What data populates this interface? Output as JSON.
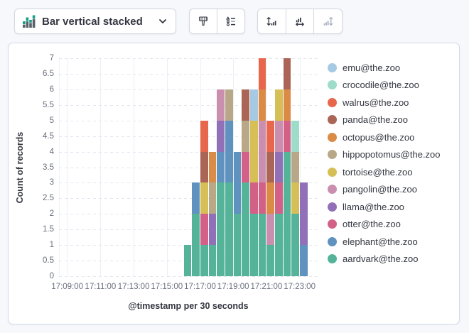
{
  "page": {
    "background": "#f7f8fc"
  },
  "toolbar": {
    "chart_switcher": {
      "label": "Bar vertical stacked",
      "icon": "bar-vertical-stacked-icon",
      "chevron_icon": "chevron-down-icon"
    },
    "style_buttons": [
      {
        "name": "brush-button",
        "icon": "brush-icon",
        "disabled": false
      },
      {
        "name": "legend-options-button",
        "icon": "legend-options-icon",
        "disabled": false
      }
    ],
    "axis_buttons": [
      {
        "name": "swap-axes-vertical-button",
        "icon": "swap-axes-vertical-icon",
        "disabled": false
      },
      {
        "name": "swap-axes-horizontal-button",
        "icon": "swap-axes-horizontal-icon",
        "disabled": false
      },
      {
        "name": "axis-settings-button",
        "icon": "axis-settings-disabled-icon",
        "disabled": true
      }
    ]
  },
  "chart_data": {
    "type": "bar",
    "stacked": true,
    "stack_order": "reverse-legend (aardvark@the.zoo at bottom, emu@the.zoo on top)",
    "xlabel": "@timestamp per 30 seconds",
    "ylabel": "Count of records",
    "ylim": [
      0,
      7
    ],
    "y_tick_step": 0.5,
    "x_axis_start": "17:08:30",
    "x_tick_labels": [
      "17:09:00",
      "17:11:00",
      "17:13:00",
      "17:15:00",
      "17:17:00",
      "17:19:00",
      "17:21:00",
      "17:23:00"
    ],
    "legend_position": "right",
    "grid": true,
    "categories": [
      "17:16:00",
      "17:16:30",
      "17:17:00",
      "17:17:30",
      "17:18:00",
      "17:18:30",
      "17:19:00",
      "17:19:30",
      "17:20:00",
      "17:20:30",
      "17:21:00",
      "17:21:30",
      "17:22:00",
      "17:22:30",
      "17:23:00"
    ],
    "series": [
      {
        "name": "emu@the.zoo",
        "color": "#A6CAE4",
        "values": [
          0,
          0,
          0,
          0,
          0,
          0,
          0,
          0,
          1,
          0,
          0,
          0,
          0,
          0,
          0
        ]
      },
      {
        "name": "crocodile@the.zoo",
        "color": "#9CDCC8",
        "values": [
          0,
          0,
          0,
          0,
          0,
          0,
          0,
          0,
          0,
          0,
          0,
          0,
          0,
          1,
          0
        ]
      },
      {
        "name": "walrus@the.zoo",
        "color": "#E7664C",
        "values": [
          0,
          0,
          1,
          0,
          0,
          0,
          0,
          0,
          0,
          1,
          1,
          0,
          0,
          0,
          0
        ]
      },
      {
        "name": "panda@the.zoo",
        "color": "#AA6556",
        "values": [
          0,
          0,
          1,
          0,
          0,
          0,
          0,
          1,
          0,
          0,
          1,
          0,
          1,
          0,
          0
        ]
      },
      {
        "name": "octopus@the.zoo",
        "color": "#DA8B45",
        "values": [
          0,
          0,
          0,
          1,
          0,
          0,
          0,
          0,
          0,
          1,
          1,
          0,
          1,
          0,
          0
        ]
      },
      {
        "name": "hippopotomus@the.zoo",
        "color": "#B9A888",
        "values": [
          0,
          0,
          0,
          1,
          0,
          1,
          0,
          1,
          0,
          0,
          0,
          0,
          0,
          1,
          0
        ]
      },
      {
        "name": "tortoise@the.zoo",
        "color": "#D6BF57",
        "values": [
          0,
          0,
          1,
          0,
          0,
          0,
          0,
          0,
          2,
          0,
          0,
          1,
          0,
          1,
          0
        ]
      },
      {
        "name": "pangolin@the.zoo",
        "color": "#CA8EAE",
        "values": [
          0,
          0,
          0,
          0,
          1,
          0,
          0,
          0,
          0,
          2,
          1,
          1,
          0,
          0,
          0
        ]
      },
      {
        "name": "llama@the.zoo",
        "color": "#9170B8",
        "values": [
          0,
          0,
          0,
          1,
          1,
          0,
          0,
          0,
          0,
          0,
          0,
          1,
          0,
          0,
          2
        ]
      },
      {
        "name": "otter@the.zoo",
        "color": "#D36086",
        "values": [
          0,
          0,
          1,
          0,
          0,
          0,
          0,
          1,
          1,
          1,
          0,
          1,
          1,
          0,
          0
        ]
      },
      {
        "name": "elephant@the.zoo",
        "color": "#6092C0",
        "values": [
          0,
          1,
          0,
          0,
          1,
          2,
          2,
          0,
          0,
          0,
          0,
          0,
          0,
          0,
          1
        ]
      },
      {
        "name": "aardvark@the.zoo",
        "color": "#54B399",
        "values": [
          1,
          2,
          1,
          1,
          3,
          3,
          2,
          3,
          2,
          2,
          1,
          2,
          4,
          2,
          0
        ]
      }
    ],
    "bar_totals": [
      1,
      3,
      5,
      4,
      6,
      6,
      4,
      6,
      6,
      7,
      5,
      6,
      7,
      5,
      3
    ]
  }
}
